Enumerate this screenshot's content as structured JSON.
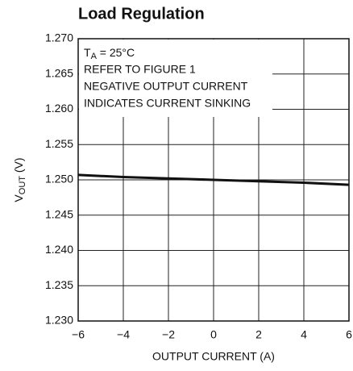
{
  "chart_data": {
    "type": "line",
    "title": "Load Regulation",
    "xlabel": "OUTPUT CURRENT (A)",
    "ylabel": {
      "main": "V",
      "sub": "OUT",
      "rest": " (V)"
    },
    "annotation": {
      "condition": {
        "symbol": "T",
        "sub": "A",
        "rest": " = 25°C"
      },
      "lines": [
        "REFER TO FIGURE 1",
        "NEGATIVE OUTPUT CURRENT",
        "INDICATES CURRENT SINKING"
      ]
    },
    "x": [
      -6,
      -4,
      -2,
      0,
      2,
      4,
      6
    ],
    "series": [
      {
        "color": "#111111",
        "values": [
          1.2507,
          1.2504,
          1.2502,
          1.25,
          1.2498,
          1.2496,
          1.2493
        ]
      }
    ],
    "xlim": [
      -6,
      6
    ],
    "xticks": [
      {
        "value": -6,
        "label": "−6"
      },
      {
        "value": -4,
        "label": "−4"
      },
      {
        "value": -2,
        "label": "−2"
      },
      0,
      2,
      4,
      6
    ],
    "ylim": [
      1.23,
      1.27
    ],
    "yticks": [
      {
        "value": 1.23,
        "label": "1.230"
      },
      1.235,
      {
        "value": 1.24,
        "label": "1.240"
      },
      1.245,
      {
        "value": 1.25,
        "label": "1.250"
      },
      1.255,
      {
        "value": 1.26,
        "label": "1.260"
      },
      1.265,
      {
        "value": 1.27,
        "label": "1.270"
      }
    ],
    "grid": true
  }
}
